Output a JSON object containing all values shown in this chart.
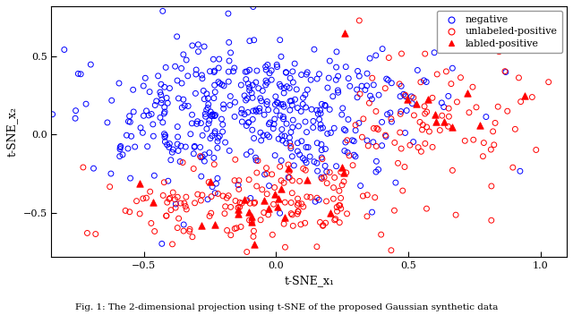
{
  "xlim": [
    -0.85,
    1.1
  ],
  "ylim": [
    -0.78,
    0.82
  ],
  "xticks": [
    -0.5,
    0.0,
    0.5,
    1.0
  ],
  "yticks": [
    -0.5,
    0.0,
    0.5
  ],
  "xlabel": "t-SNE_x₁",
  "ylabel": "t-SNE_x₂",
  "caption": "Fig. 1: The 2-dimensional projection using t-SNE of the proposed Gaussian synthetic data",
  "legend_labels": [
    "negative",
    "unlabeled-positive",
    "labled-positive"
  ],
  "neg_color": "#0000ff",
  "pos_color": "#ff0000",
  "bg_color": "#ffffff",
  "neg_n": 450,
  "unlabeled_n": 250,
  "labeled_n": 35,
  "seed": 12
}
